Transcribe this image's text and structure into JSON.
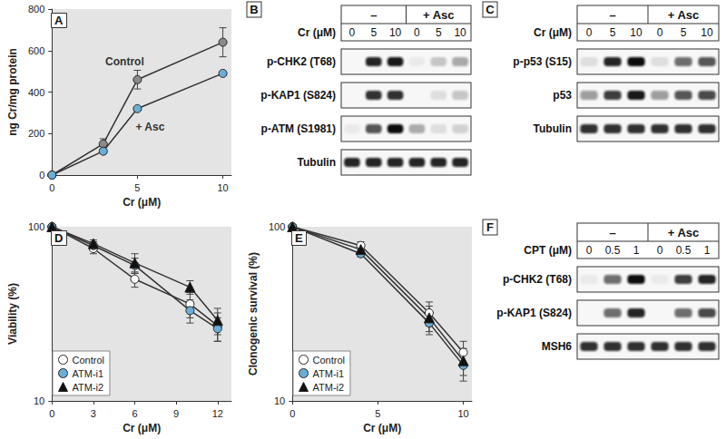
{
  "chart_data": [
    {
      "panel": "A",
      "type": "line",
      "x": [
        0,
        3,
        5,
        10
      ],
      "xlabel": "Cr (μM)",
      "ylabel": "ng Cr/mg protein",
      "xlim": [
        0,
        10.5
      ],
      "xticks": [
        0,
        5,
        10
      ],
      "ylim": [
        0,
        800
      ],
      "yticks": [
        0,
        200,
        400,
        600,
        800
      ],
      "grid": false,
      "series": [
        {
          "name": "Control",
          "color": "#8a8a8a",
          "marker": "circle",
          "values": [
            0,
            150,
            460,
            640
          ],
          "errors": [
            0,
            25,
            45,
            70
          ]
        },
        {
          "name": "+ Asc",
          "color": "#6aaed6",
          "marker": "circle",
          "values": [
            0,
            115,
            320,
            490
          ],
          "errors": [
            0,
            10,
            8,
            8
          ]
        }
      ]
    },
    {
      "panel": "D",
      "type": "line",
      "log": "y",
      "x": [
        0,
        3,
        6,
        10,
        12
      ],
      "xlabel": "Cr (μM)",
      "ylabel": "Viability (%)",
      "xlim": [
        0,
        13
      ],
      "xticks": [
        0,
        3,
        6,
        9,
        12
      ],
      "ylim": [
        10,
        100
      ],
      "yticks": [
        10,
        100
      ],
      "grid": false,
      "legend": "lower left",
      "series": [
        {
          "name": "Control",
          "color": "#ffffff",
          "marker": "circle",
          "values": [
            100,
            75,
            50,
            36,
            27
          ],
          "errors": [
            0,
            5,
            5,
            6,
            5
          ]
        },
        {
          "name": "ATM-i1",
          "color": "#6aaed6",
          "marker": "circle",
          "values": [
            100,
            78,
            60,
            33,
            26
          ],
          "errors": [
            0,
            4,
            6,
            5,
            4
          ]
        },
        {
          "name": "ATM-i2",
          "color": "#111111",
          "marker": "triangle",
          "values": [
            100,
            80,
            62,
            45,
            29
          ],
          "errors": [
            0,
            4,
            8,
            4,
            5
          ]
        }
      ]
    },
    {
      "panel": "E",
      "type": "line",
      "log": "y",
      "x": [
        0,
        4,
        8,
        10
      ],
      "xlabel": "Cr (μM)",
      "ylabel": "Clonogenic survival (%)",
      "xlim": [
        0,
        10.5
      ],
      "xticks": [
        0,
        5,
        10
      ],
      "ylim": [
        10,
        100
      ],
      "yticks": [
        10,
        100
      ],
      "grid": false,
      "legend": "lower left",
      "series": [
        {
          "name": "Control",
          "color": "#ffffff",
          "marker": "circle",
          "values": [
            100,
            78,
            32,
            19
          ],
          "errors": [
            0,
            4,
            5,
            3
          ]
        },
        {
          "name": "ATM-i1",
          "color": "#6aaed6",
          "marker": "circle",
          "values": [
            100,
            70,
            28,
            16
          ],
          "errors": [
            0,
            3,
            4,
            3
          ]
        },
        {
          "name": "ATM-i2",
          "color": "#111111",
          "marker": "triangle",
          "values": [
            100,
            74,
            30,
            17
          ],
          "errors": [
            0,
            3,
            5,
            3
          ]
        }
      ]
    }
  ],
  "blots": [
    {
      "panel": "B",
      "groups": [
        {
          "label": "–",
          "lanes": 3
        },
        {
          "label": "+ Asc",
          "lanes": 3
        }
      ],
      "dose_label": "Cr (μM)",
      "doses": [
        0,
        5,
        10,
        0,
        5,
        10
      ],
      "rows": [
        {
          "label": "p-CHK2 (T68)",
          "intensity": [
            0,
            0.9,
            0.95,
            0.05,
            0.2,
            0.35
          ]
        },
        {
          "label": "p-KAP1 (S824)",
          "intensity": [
            0,
            0.85,
            0.85,
            0,
            0.1,
            0.2
          ]
        },
        {
          "label": "p-ATM (S1981)",
          "intensity": [
            0.05,
            0.7,
            1,
            0.3,
            0.1,
            0.15
          ]
        },
        {
          "label": "Tubulin",
          "intensity": [
            0.9,
            0.9,
            0.9,
            0.9,
            0.9,
            0.9
          ]
        }
      ]
    },
    {
      "panel": "C",
      "groups": [
        {
          "label": "–",
          "lanes": 3
        },
        {
          "label": "+ Asc",
          "lanes": 3
        }
      ],
      "dose_label": "Cr (μM)",
      "doses": [
        0,
        5,
        10,
        0,
        5,
        10
      ],
      "rows": [
        {
          "label": "p-p53 (S15)",
          "intensity": [
            0.1,
            0.9,
            1,
            0.1,
            0.6,
            0.7
          ]
        },
        {
          "label": "p53",
          "intensity": [
            0.4,
            0.8,
            0.95,
            0.4,
            0.7,
            0.75
          ]
        },
        {
          "label": "Tubulin",
          "intensity": [
            0.85,
            0.85,
            0.85,
            0.85,
            0.85,
            0.85
          ]
        }
      ]
    },
    {
      "panel": "F",
      "groups": [
        {
          "label": "–",
          "lanes": 3
        },
        {
          "label": "+ Asc",
          "lanes": 3
        }
      ],
      "dose_label": "CPT (μM)",
      "doses": [
        0,
        0.5,
        1,
        0,
        0.5,
        1
      ],
      "rows": [
        {
          "label": "p-CHK2 (T68)",
          "intensity": [
            0.05,
            0.6,
            1,
            0.05,
            0.8,
            0.9
          ]
        },
        {
          "label": "p-KAP1 (S824)",
          "intensity": [
            0,
            0.6,
            0.9,
            0,
            0.6,
            0.75
          ]
        },
        {
          "label": "MSH6",
          "intensity": [
            0.85,
            0.85,
            0.85,
            0.85,
            0.85,
            0.85
          ]
        }
      ]
    }
  ]
}
